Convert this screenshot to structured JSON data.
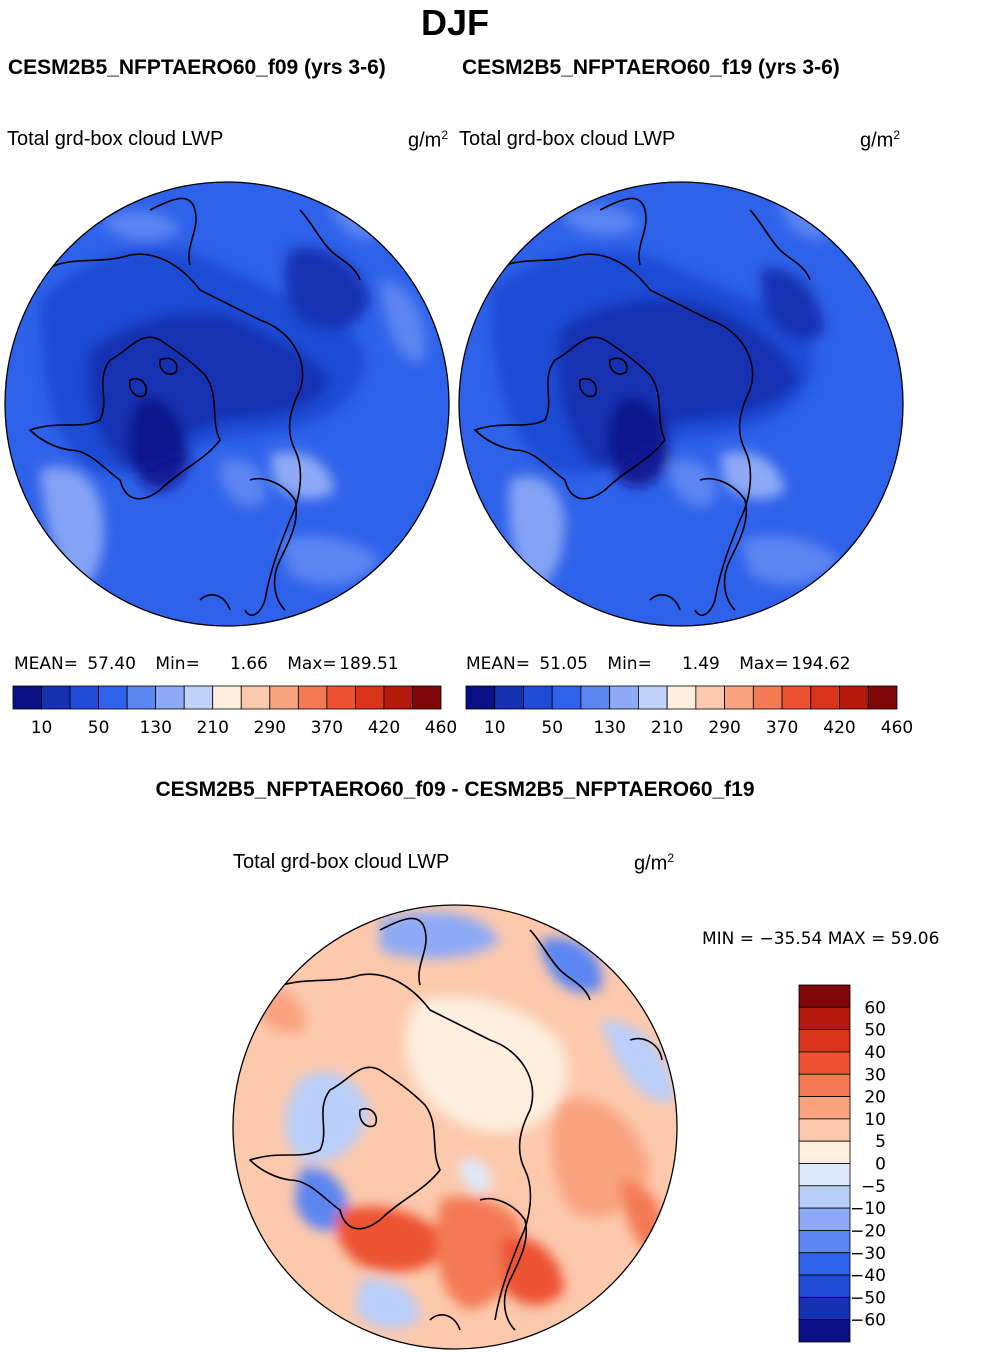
{
  "title": "DJF",
  "panels": [
    {
      "case": "CESM2B5_NFPTAERO60_f09 (yrs 3-6)",
      "variable": "Total grd-box cloud LWP",
      "units_base": "g/m",
      "units_exp": "2",
      "stats": {
        "mean_label": "MEAN=",
        "mean": "57.40",
        "min_label": "Min=",
        "min": "1.66",
        "max_label": "Max=",
        "max": "189.51"
      }
    },
    {
      "case": "CESM2B5_NFPTAERO60_f19 (yrs 3-6)",
      "variable": "Total grd-box cloud LWP",
      "units_base": "g/m",
      "units_exp": "2",
      "stats": {
        "mean_label": "MEAN=",
        "mean": "51.05",
        "min_label": "Min=",
        "min": "1.49",
        "max_label": "Max=",
        "max": "194.62"
      }
    }
  ],
  "difference": {
    "title": "CESM2B5_NFPTAERO60_f09 - CESM2B5_NFPTAERO60_f19",
    "variable": "Total grd-box cloud LWP",
    "units_base": "g/m",
    "units_exp": "2",
    "minmax_text": "MIN = −35.54  MAX =   59.06"
  },
  "chart_data": [
    {
      "type": "heatmap",
      "projection": "north polar stereographic",
      "title": "CESM2B5_NFPTAERO60_f09 (yrs 3-6)",
      "variable": "Total grd-box cloud LWP",
      "units": "g/m2",
      "mean": 57.4,
      "min": 1.66,
      "max": 189.51,
      "colorbar_ticks": [
        "10",
        "50",
        "130",
        "210",
        "290",
        "370",
        "420",
        "460"
      ],
      "colorbar_colors": [
        "#0a0f85",
        "#1431b2",
        "#1f4bd6",
        "#2f62ea",
        "#5b85f2",
        "#8eaaf6",
        "#c1d3fa",
        "#fdeede",
        "#fcc9ad",
        "#f9a37f",
        "#f47a54",
        "#ec5231",
        "#d9331a",
        "#b31a0c",
        "#7f0707"
      ]
    },
    {
      "type": "heatmap",
      "projection": "north polar stereographic",
      "title": "CESM2B5_NFPTAERO60_f19 (yrs 3-6)",
      "variable": "Total grd-box cloud LWP",
      "units": "g/m2",
      "mean": 51.05,
      "min": 1.49,
      "max": 194.62,
      "colorbar_ticks": [
        "10",
        "50",
        "130",
        "210",
        "290",
        "370",
        "420",
        "460"
      ],
      "colorbar_colors": [
        "#0a0f85",
        "#1431b2",
        "#1f4bd6",
        "#2f62ea",
        "#5b85f2",
        "#8eaaf6",
        "#c1d3fa",
        "#fdeede",
        "#fcc9ad",
        "#f9a37f",
        "#f47a54",
        "#ec5231",
        "#d9331a",
        "#b31a0c",
        "#7f0707"
      ]
    },
    {
      "type": "heatmap",
      "projection": "north polar stereographic",
      "title": "CESM2B5_NFPTAERO60_f09 - CESM2B5_NFPTAERO60_f19",
      "variable": "Total grd-box cloud LWP",
      "units": "g/m2",
      "min": -35.54,
      "max": 59.06,
      "colorbar_ticks": [
        "60",
        "50",
        "40",
        "30",
        "20",
        "10",
        "5",
        "0",
        "−5",
        "−10",
        "−20",
        "−30",
        "−40",
        "−50",
        "−60"
      ],
      "colorbar_colors": [
        "#7f0707",
        "#b31a0c",
        "#d9331a",
        "#ec5231",
        "#f47a54",
        "#f9a37f",
        "#fcc9ad",
        "#fdeede",
        "#deeafc",
        "#b9cffa",
        "#8eaaf6",
        "#5b85f2",
        "#2f62ea",
        "#1f4bd6",
        "#1431b2",
        "#0a0f85"
      ]
    }
  ]
}
